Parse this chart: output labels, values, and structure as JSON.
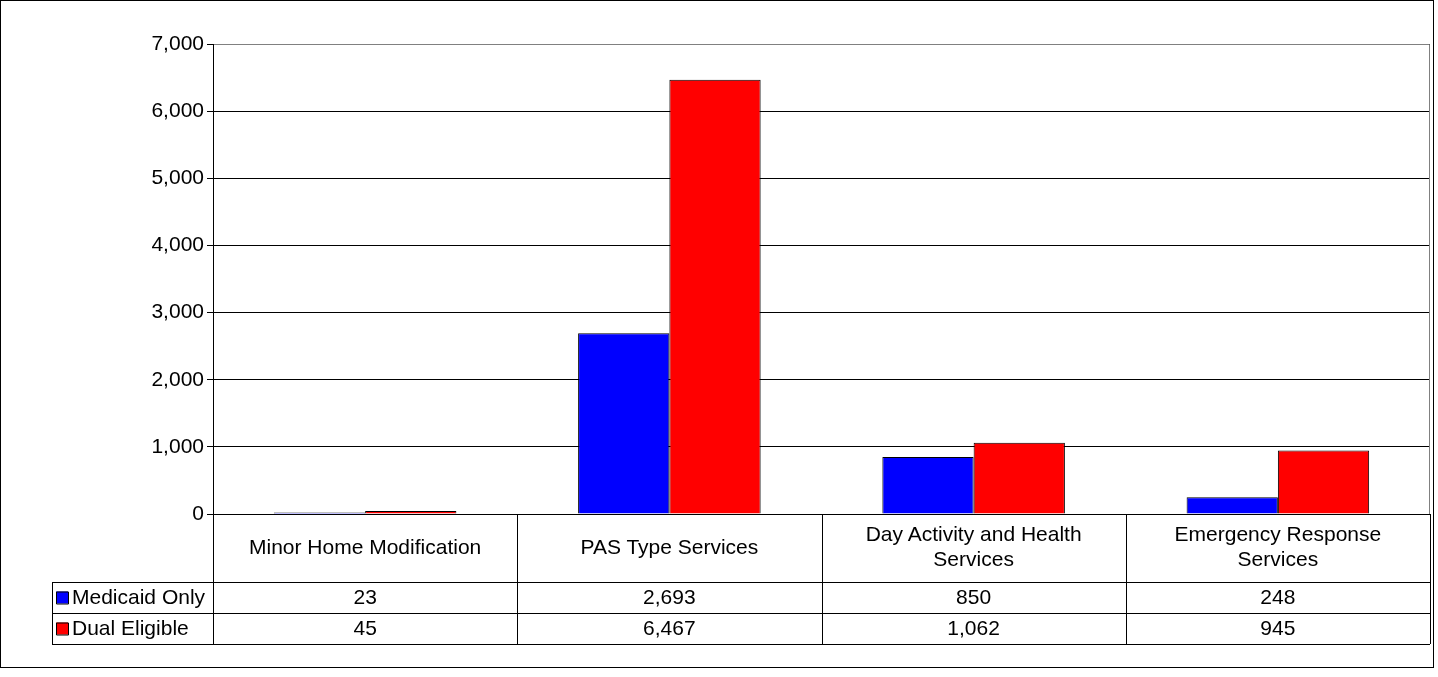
{
  "chart_data": {
    "type": "bar",
    "categories": [
      "Minor Home Modification",
      "PAS Type Services",
      "Day Activity and Health Services",
      "Emergency Response Services"
    ],
    "series": [
      {
        "name": "Medicaid Only",
        "color": "#0000ff",
        "values": [
          23,
          2693,
          850,
          248
        ],
        "value_labels": [
          "23",
          "2,693",
          "850",
          "248"
        ]
      },
      {
        "name": "Dual Eligible",
        "color": "#ff0000",
        "values": [
          45,
          6467,
          1062,
          945
        ],
        "value_labels": [
          "45",
          "6,467",
          "1,062",
          "945"
        ]
      }
    ],
    "ylim": [
      0,
      7000
    ],
    "yticks": [
      0,
      {
        "value": 1000,
        "label": "1,000"
      },
      {
        "value": 2000,
        "label": "2,000"
      },
      {
        "value": 3000,
        "label": "3,000"
      },
      {
        "value": 4000,
        "label": "4,000"
      },
      {
        "value": 5000,
        "label": "5,000"
      },
      {
        "value": 6000,
        "label": "6,000"
      },
      {
        "value": 7000,
        "label": "7,000"
      }
    ],
    "grid": "y",
    "legend": "bottom"
  }
}
